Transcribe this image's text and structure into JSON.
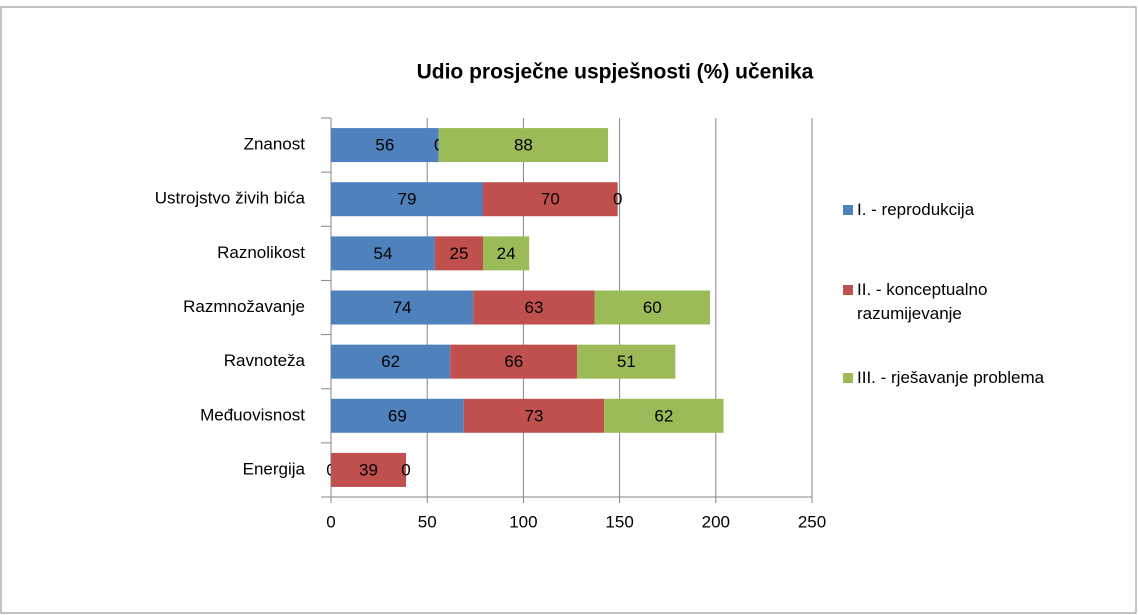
{
  "chart_data": {
    "type": "bar",
    "orientation": "horizontal",
    "stacked": true,
    "title": "Udio prosječne uspješnosti (%) učenika",
    "categories": [
      "Znanost",
      "Ustrojstvo živih bića",
      "Raznolikost",
      "Razmnožavanje",
      "Ravnoteža",
      "Međuovisnost",
      "Energija"
    ],
    "series": [
      {
        "name": "I. - reprodukcija",
        "color": "#4f81bd",
        "values": [
          56,
          79,
          54,
          74,
          62,
          69,
          0
        ]
      },
      {
        "name": "II. - konceptualno razumijevanje",
        "color": "#c0504d",
        "values": [
          0,
          70,
          25,
          63,
          66,
          73,
          39
        ]
      },
      {
        "name": "III. - rješavanje problema",
        "color": "#9bbb59",
        "values": [
          88,
          0,
          24,
          60,
          51,
          62,
          0
        ]
      }
    ],
    "xlim": [
      0,
      250
    ],
    "xticks": [
      0,
      50,
      100,
      150,
      200,
      250
    ],
    "grid": true,
    "legend": "right"
  }
}
